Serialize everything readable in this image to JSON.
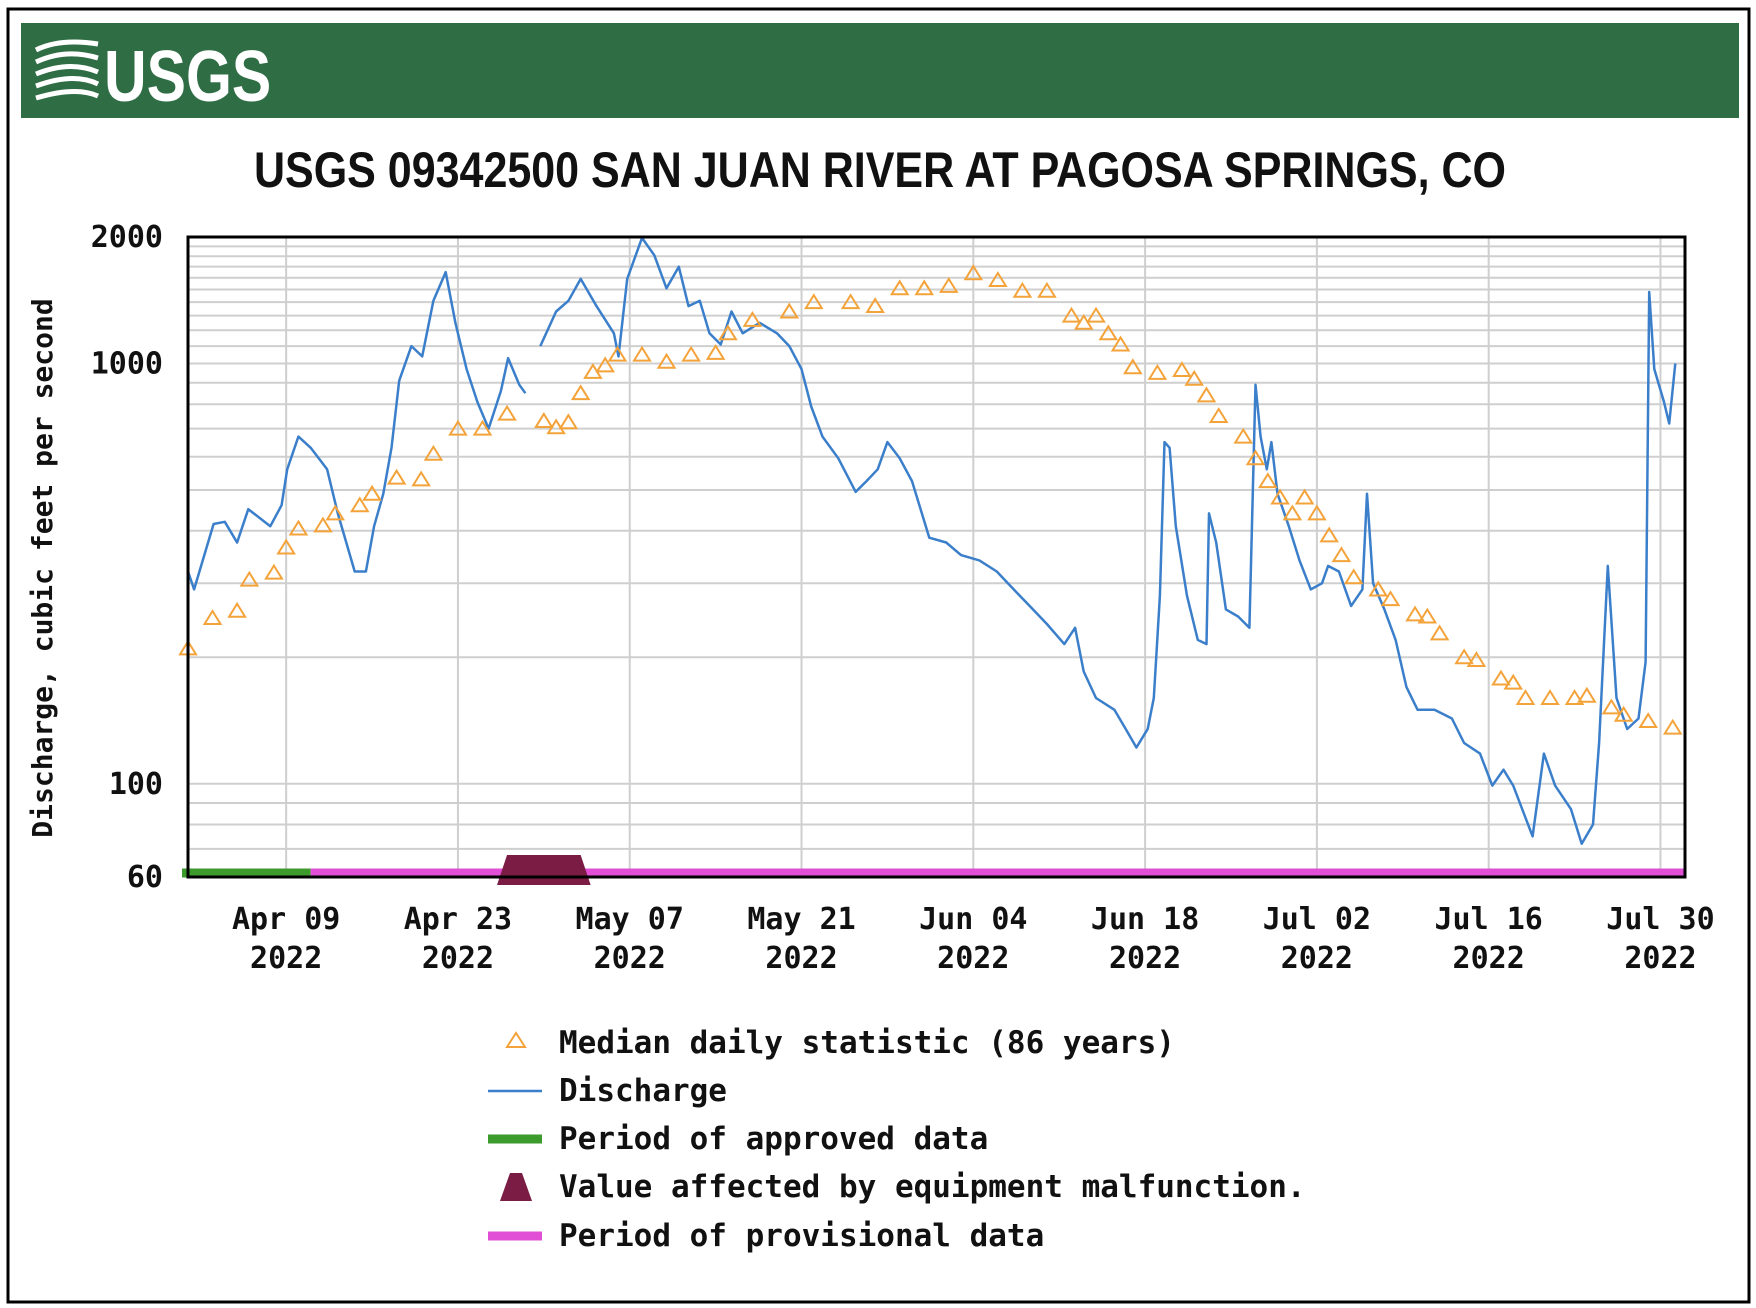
{
  "header": {
    "logo_text": "USGS",
    "color": "#2f6d45"
  },
  "chart_data": {
    "type": "line",
    "title": "USGS 09342500 SAN JUAN RIVER AT PAGOSA SPRINGS, CO",
    "ylabel": "Discharge, cubic feet per second",
    "xlabel": "",
    "y_scale": "log",
    "ylim": [
      60,
      2000
    ],
    "xlim": [
      "2022-04-01",
      "2022-08-01"
    ],
    "grid": true,
    "legend_placement": "bottom",
    "y_ticks": [
      {
        "value": 2000,
        "label": "2000"
      },
      {
        "value": 1000,
        "label": "1000"
      },
      {
        "value": 100,
        "label": "100"
      },
      {
        "value": 60,
        "label": "60"
      }
    ],
    "x_ticks": [
      {
        "date": "2022-04-09",
        "label1": "Apr 09",
        "label2": "2022"
      },
      {
        "date": "2022-04-23",
        "label1": "Apr 23",
        "label2": "2022"
      },
      {
        "date": "2022-05-07",
        "label1": "May 07",
        "label2": "2022"
      },
      {
        "date": "2022-05-21",
        "label1": "May 21",
        "label2": "2022"
      },
      {
        "date": "2022-06-04",
        "label1": "Jun 04",
        "label2": "2022"
      },
      {
        "date": "2022-06-18",
        "label1": "Jun 18",
        "label2": "2022"
      },
      {
        "date": "2022-07-02",
        "label1": "Jul 02",
        "label2": "2022"
      },
      {
        "date": "2022-07-16",
        "label1": "Jul 16",
        "label2": "2022"
      },
      {
        "date": "2022-07-30",
        "label1": "Jul 30",
        "label2": "2022"
      }
    ],
    "colors": {
      "median": "#f4a33a",
      "discharge": "#3b7fcb",
      "approved": "#3d9a2c",
      "malfunction": "#7b1c45",
      "provisional": "#e04fd6"
    },
    "median": [
      [
        "2022-04-01",
        210
      ],
      [
        "2022-04-03",
        248
      ],
      [
        "2022-04-05",
        258
      ],
      [
        "2022-04-06",
        306
      ],
      [
        "2022-04-08",
        318
      ],
      [
        "2022-04-09",
        365
      ],
      [
        "2022-04-10",
        405
      ],
      [
        "2022-04-12",
        412
      ],
      [
        "2022-04-13",
        440
      ],
      [
        "2022-04-15",
        460
      ],
      [
        "2022-04-16",
        490
      ],
      [
        "2022-04-18",
        535
      ],
      [
        "2022-04-20",
        530
      ],
      [
        "2022-04-21",
        610
      ],
      [
        "2022-04-23",
        700
      ],
      [
        "2022-04-25",
        700
      ],
      [
        "2022-04-27",
        760
      ],
      [
        "2022-04-30",
        730
      ],
      [
        "2022-05-01",
        705
      ],
      [
        "2022-05-02",
        725
      ],
      [
        "2022-05-03",
        850
      ],
      [
        "2022-05-04",
        955
      ],
      [
        "2022-05-05",
        990
      ],
      [
        "2022-05-06",
        1050
      ],
      [
        "2022-05-08",
        1050
      ],
      [
        "2022-05-10",
        1010
      ],
      [
        "2022-05-12",
        1050
      ],
      [
        "2022-05-14",
        1060
      ],
      [
        "2022-05-15",
        1180
      ],
      [
        "2022-05-17",
        1270
      ],
      [
        "2022-05-20",
        1330
      ],
      [
        "2022-05-22",
        1400
      ],
      [
        "2022-05-25",
        1400
      ],
      [
        "2022-05-27",
        1370
      ],
      [
        "2022-05-29",
        1510
      ],
      [
        "2022-05-31",
        1510
      ],
      [
        "2022-06-02",
        1530
      ],
      [
        "2022-06-04",
        1640
      ],
      [
        "2022-06-06",
        1580
      ],
      [
        "2022-06-08",
        1490
      ],
      [
        "2022-06-10",
        1490
      ],
      [
        "2022-06-12",
        1300
      ],
      [
        "2022-06-13",
        1250
      ],
      [
        "2022-06-14",
        1300
      ],
      [
        "2022-06-15",
        1180
      ],
      [
        "2022-06-16",
        1110
      ],
      [
        "2022-06-17",
        980
      ],
      [
        "2022-06-19",
        950
      ],
      [
        "2022-06-21",
        965
      ],
      [
        "2022-06-22",
        920
      ],
      [
        "2022-06-23",
        840
      ],
      [
        "2022-06-24",
        750
      ],
      [
        "2022-06-26",
        670
      ],
      [
        "2022-06-27",
        595
      ],
      [
        "2022-06-28",
        525
      ],
      [
        "2022-06-29",
        480
      ],
      [
        "2022-06-30",
        440
      ],
      [
        "2022-07-01",
        480
      ],
      [
        "2022-07-02",
        440
      ],
      [
        "2022-07-03",
        390
      ],
      [
        "2022-07-04",
        350
      ],
      [
        "2022-07-05",
        310
      ],
      [
        "2022-07-07",
        290
      ],
      [
        "2022-07-08",
        275
      ],
      [
        "2022-07-10",
        253
      ],
      [
        "2022-07-11",
        250
      ],
      [
        "2022-07-12",
        228
      ],
      [
        "2022-07-14",
        200
      ],
      [
        "2022-07-15",
        197
      ],
      [
        "2022-07-17",
        178
      ],
      [
        "2022-07-18",
        174
      ],
      [
        "2022-07-19",
        160
      ],
      [
        "2022-07-21",
        160
      ],
      [
        "2022-07-23",
        160
      ],
      [
        "2022-07-24",
        162
      ],
      [
        "2022-07-26",
        152
      ],
      [
        "2022-07-27",
        146
      ],
      [
        "2022-07-29",
        141
      ],
      [
        "2022-07-31",
        136
      ]
    ],
    "discharge_segments": [
      [
        [
          "2022-04-01T00",
          320
        ],
        [
          "2022-04-01T12",
          290
        ],
        [
          "2022-04-03T02",
          415
        ],
        [
          "2022-04-04T00",
          420
        ],
        [
          "2022-04-05T00",
          375
        ],
        [
          "2022-04-05T22",
          450
        ],
        [
          "2022-04-07T17",
          410
        ],
        [
          "2022-04-08T15",
          460
        ],
        [
          "2022-04-09T02",
          560
        ],
        [
          "2022-04-10T00",
          670
        ],
        [
          "2022-04-11T00",
          630
        ],
        [
          "2022-04-12T08",
          560
        ],
        [
          "2022-04-13T05",
          440
        ],
        [
          "2022-04-14T14",
          320
        ],
        [
          "2022-04-15T12",
          320
        ],
        [
          "2022-04-16T04",
          410
        ],
        [
          "2022-04-16T22",
          490
        ],
        [
          "2022-04-17T14",
          630
        ],
        [
          "2022-04-18T05",
          910
        ],
        [
          "2022-04-19T05",
          1100
        ],
        [
          "2022-04-20T02",
          1040
        ],
        [
          "2022-04-21T00",
          1410
        ],
        [
          "2022-04-22T00",
          1650
        ],
        [
          "2022-04-22T19",
          1250
        ],
        [
          "2022-04-23T17",
          970
        ],
        [
          "2022-04-24T14",
          810
        ],
        [
          "2022-04-25T12",
          700
        ],
        [
          "2022-04-26T12",
          860
        ],
        [
          "2022-04-27T02",
          1030
        ],
        [
          "2022-04-28T00",
          890
        ],
        [
          "2022-04-28T12",
          850
        ]
      ],
      [
        [
          "2022-04-29T17",
          1100
        ],
        [
          "2022-05-01T00",
          1330
        ],
        [
          "2022-05-02T00",
          1410
        ],
        [
          "2022-05-03T00",
          1590
        ],
        [
          "2022-05-04T07",
          1370
        ],
        [
          "2022-05-05T17",
          1180
        ],
        [
          "2022-05-06T02",
          1040
        ],
        [
          "2022-05-06T19",
          1590
        ],
        [
          "2022-05-08T00",
          1990
        ],
        [
          "2022-05-09T00",
          1810
        ],
        [
          "2022-05-10T00",
          1510
        ],
        [
          "2022-05-11T00",
          1700
        ],
        [
          "2022-05-11T19",
          1370
        ],
        [
          "2022-05-12T17",
          1410
        ],
        [
          "2022-05-13T12",
          1180
        ],
        [
          "2022-05-14T10",
          1110
        ],
        [
          "2022-05-15T07",
          1330
        ],
        [
          "2022-05-16T05",
          1180
        ],
        [
          "2022-05-17T14",
          1250
        ],
        [
          "2022-05-19T00",
          1180
        ],
        [
          "2022-05-20T00",
          1100
        ],
        [
          "2022-05-21T00",
          970
        ],
        [
          "2022-05-21T19",
          790
        ],
        [
          "2022-05-22T17",
          670
        ],
        [
          "2022-05-24T00",
          595
        ],
        [
          "2022-05-25T10",
          495
        ],
        [
          "2022-05-26T07",
          525
        ],
        [
          "2022-05-27T05",
          560
        ],
        [
          "2022-05-28T00",
          650
        ],
        [
          "2022-05-29T00",
          595
        ],
        [
          "2022-05-30T00",
          525
        ],
        [
          "2022-05-31T10",
          385
        ],
        [
          "2022-06-01T19",
          375
        ],
        [
          "2022-06-03T00",
          350
        ],
        [
          "2022-06-04T12",
          340
        ],
        [
          "2022-06-05T22",
          320
        ],
        [
          "2022-06-07T07",
          290
        ],
        [
          "2022-06-08T14",
          265
        ],
        [
          "2022-06-10T00",
          240
        ],
        [
          "2022-06-11T10",
          215
        ],
        [
          "2022-06-12T07",
          235
        ],
        [
          "2022-06-13T00",
          185
        ],
        [
          "2022-06-14T00",
          160
        ],
        [
          "2022-06-15T12",
          150
        ],
        [
          "2022-06-16T10",
          135
        ],
        [
          "2022-06-17T07",
          122
        ],
        [
          "2022-06-18T05",
          135
        ],
        [
          "2022-06-18T17",
          160
        ],
        [
          "2022-06-19T05",
          280
        ],
        [
          "2022-06-19T14",
          650
        ],
        [
          "2022-06-20T00",
          630
        ],
        [
          "2022-06-20T12",
          410
        ],
        [
          "2022-06-21T10",
          280
        ],
        [
          "2022-06-22T07",
          220
        ],
        [
          "2022-06-23T00",
          215
        ],
        [
          "2022-06-23T05",
          440
        ],
        [
          "2022-06-23T19",
          375
        ],
        [
          "2022-06-24T14",
          260
        ],
        [
          "2022-06-25T14",
          250
        ],
        [
          "2022-06-26T12",
          235
        ],
        [
          "2022-06-27T00",
          890
        ],
        [
          "2022-06-27T10",
          670
        ],
        [
          "2022-06-27T22",
          560
        ],
        [
          "2022-06-28T07",
          650
        ],
        [
          "2022-06-28T19",
          490
        ],
        [
          "2022-06-29T17",
          410
        ],
        [
          "2022-06-30T14",
          340
        ],
        [
          "2022-07-01T12",
          290
        ],
        [
          "2022-07-02T10",
          300
        ],
        [
          "2022-07-02T22",
          330
        ],
        [
          "2022-07-03T19",
          320
        ],
        [
          "2022-07-04T19",
          265
        ],
        [
          "2022-07-05T17",
          290
        ],
        [
          "2022-07-06T02",
          490
        ],
        [
          "2022-07-06T14",
          300
        ],
        [
          "2022-07-07T12",
          260
        ],
        [
          "2022-07-08T10",
          220
        ],
        [
          "2022-07-09T07",
          170
        ],
        [
          "2022-07-10T05",
          150
        ],
        [
          "2022-07-11T14",
          150
        ],
        [
          "2022-07-13T00",
          143
        ],
        [
          "2022-07-14T00",
          125
        ],
        [
          "2022-07-15T07",
          118
        ],
        [
          "2022-07-16T07",
          99
        ],
        [
          "2022-07-17T05",
          108
        ],
        [
          "2022-07-18T00",
          99
        ],
        [
          "2022-07-19T14",
          75
        ],
        [
          "2022-07-20T12",
          118
        ],
        [
          "2022-07-21T10",
          99
        ],
        [
          "2022-07-22T17",
          87
        ],
        [
          "2022-07-23T14",
          72
        ],
        [
          "2022-07-24T12",
          80
        ],
        [
          "2022-07-25T00",
          125
        ],
        [
          "2022-07-25T17",
          330
        ],
        [
          "2022-07-26T10",
          160
        ],
        [
          "2022-07-27T07",
          135
        ],
        [
          "2022-07-28T05",
          143
        ],
        [
          "2022-07-28T19",
          195
        ],
        [
          "2022-07-29T02",
          1480
        ],
        [
          "2022-07-29T12",
          970
        ],
        [
          "2022-07-30T07",
          810
        ],
        [
          "2022-07-30T17",
          720
        ],
        [
          "2022-07-31T05",
          1000
        ]
      ]
    ],
    "approved_period": [
      "2022-04-01",
      "2022-04-11"
    ],
    "provisional_period": [
      "2022-04-11",
      "2022-08-01"
    ],
    "malfunction_period": [
      "2022-04-27",
      "2022-05-03"
    ],
    "legend": [
      {
        "key": "median",
        "label": "Median daily statistic (86 years)"
      },
      {
        "key": "discharge",
        "label": "Discharge"
      },
      {
        "key": "approved",
        "label": "Period of approved data"
      },
      {
        "key": "malfunction",
        "label": "Value affected by equipment malfunction."
      },
      {
        "key": "provisional",
        "label": "Period of provisional data"
      }
    ]
  }
}
